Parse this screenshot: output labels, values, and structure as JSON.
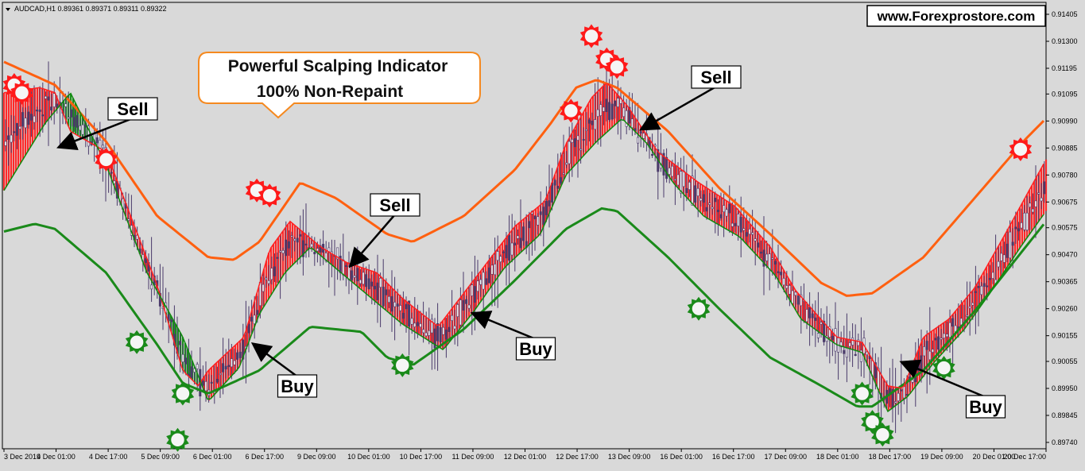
{
  "chart_data": {
    "type": "line",
    "header": "AUDCAD,H1  0.89361 0.89371 0.89311 0.89322",
    "watermark": "www.Forexprostore.com",
    "headline_line1": "Powerful Scalping Indicator",
    "headline_line2": "100% Non-Repaint",
    "y_ticks": [
      "0.91405",
      "0.91300",
      "0.91195",
      "0.91095",
      "0.90990",
      "0.90885",
      "0.90780",
      "0.90675",
      "0.90575",
      "0.90470",
      "0.90365",
      "0.90260",
      "0.90155",
      "0.90055",
      "0.89950",
      "0.89845",
      "0.89740"
    ],
    "ylim": [
      0.8974,
      0.91405
    ],
    "x_ticks": [
      "3 Dec 2019",
      "4 Dec 01:00",
      "4 Dec 17:00",
      "5 Dec 09:00",
      "6 Dec 01:00",
      "6 Dec 17:00",
      "9 Dec 09:00",
      "10 Dec 01:00",
      "10 Dec 17:00",
      "11 Dec 09:00",
      "12 Dec 01:00",
      "12 Dec 17:00",
      "13 Dec 09:00",
      "16 Dec 01:00",
      "16 Dec 17:00",
      "17 Dec 09:00",
      "18 Dec 01:00",
      "18 Dec 17:00",
      "19 Dec 09:00",
      "20 Dec 01:00",
      "20 Dec 17:00"
    ],
    "x_range": [
      0,
      20.4
    ],
    "series": [
      {
        "values": [
          [
            0,
            0.9122
          ],
          [
            1,
            0.9113
          ],
          [
            2,
            0.9091
          ],
          [
            3,
            0.9062
          ],
          [
            4,
            0.9046
          ],
          [
            4.5,
            0.9045
          ],
          [
            5,
            0.9052
          ],
          [
            5.8,
            0.9075
          ],
          [
            6.5,
            0.9069
          ],
          [
            7.5,
            0.9055
          ],
          [
            8,
            0.9052
          ],
          [
            9,
            0.9062
          ],
          [
            10,
            0.908
          ],
          [
            10.7,
            0.9098
          ],
          [
            11.2,
            0.9112
          ],
          [
            11.6,
            0.9115
          ],
          [
            12,
            0.9112
          ],
          [
            13,
            0.9095
          ],
          [
            14,
            0.9073
          ],
          [
            15,
            0.9055
          ],
          [
            16,
            0.9036
          ],
          [
            16.5,
            0.9031
          ],
          [
            17,
            0.9032
          ],
          [
            18,
            0.9046
          ],
          [
            19,
            0.9069
          ],
          [
            20,
            0.9092
          ],
          [
            20.4,
            0.91
          ]
        ],
        "color": "#ff6010"
      },
      {
        "values": [
          [
            0,
            0.9056
          ],
          [
            0.6,
            0.9059
          ],
          [
            1,
            0.9057
          ],
          [
            2,
            0.904
          ],
          [
            3,
            0.9012
          ],
          [
            3.5,
            0.8997
          ],
          [
            4,
            0.8993
          ],
          [
            5,
            0.9002
          ],
          [
            6,
            0.9019
          ],
          [
            7,
            0.9017
          ],
          [
            7.5,
            0.9007
          ],
          [
            8,
            0.9004
          ],
          [
            9,
            0.9018
          ],
          [
            10,
            0.9037
          ],
          [
            11,
            0.9057
          ],
          [
            11.7,
            0.9065
          ],
          [
            12,
            0.9064
          ],
          [
            13,
            0.9046
          ],
          [
            14,
            0.9026
          ],
          [
            15,
            0.9007
          ],
          [
            16,
            0.8996
          ],
          [
            16.7,
            0.8988
          ],
          [
            17,
            0.8988
          ],
          [
            18,
            0.9002
          ],
          [
            19,
            0.9025
          ],
          [
            20,
            0.905
          ],
          [
            20.4,
            0.906
          ]
        ],
        "color": "#1a8a1a"
      },
      {
        "values": [
          [
            0,
            0.911
          ],
          [
            0.7,
            0.9112
          ],
          [
            1,
            0.911
          ],
          [
            1.3,
            0.9095
          ],
          [
            2,
            0.9087
          ],
          [
            3,
            0.9035
          ],
          [
            3.5,
            0.9002
          ],
          [
            3.8,
            0.8996
          ],
          [
            4,
            0.9002
          ],
          [
            4.7,
            0.9015
          ],
          [
            5.2,
            0.9049
          ],
          [
            5.6,
            0.906
          ],
          [
            6.2,
            0.905
          ],
          [
            6.7,
            0.9044
          ],
          [
            7.3,
            0.904
          ],
          [
            7.8,
            0.903
          ],
          [
            8.5,
            0.9019
          ],
          [
            9.5,
            0.9045
          ],
          [
            10,
            0.9058
          ],
          [
            10.6,
            0.9068
          ],
          [
            11.0,
            0.909
          ],
          [
            11.5,
            0.9108
          ],
          [
            11.8,
            0.9114
          ],
          [
            12.2,
            0.9105
          ],
          [
            12.8,
            0.9087
          ],
          [
            13.6,
            0.9075
          ],
          [
            14.3,
            0.9066
          ],
          [
            15,
            0.905
          ],
          [
            15.5,
            0.9033
          ],
          [
            16.3,
            0.9015
          ],
          [
            16.8,
            0.9013
          ],
          [
            17.3,
            0.8996
          ],
          [
            17.6,
            0.8995
          ],
          [
            18,
            0.9015
          ],
          [
            18.5,
            0.9022
          ],
          [
            19,
            0.9034
          ],
          [
            19.6,
            0.9055
          ],
          [
            20.4,
            0.9084
          ]
        ],
        "color": "#ff2020"
      },
      {
        "values": [
          [
            0,
            0.9072
          ],
          [
            0.8,
            0.9098
          ],
          [
            1.3,
            0.911
          ],
          [
            2,
            0.9082
          ],
          [
            2.8,
            0.904
          ],
          [
            3.5,
            0.9015
          ],
          [
            4,
            0.899
          ],
          [
            4.6,
            0.9003
          ],
          [
            5.0,
            0.9024
          ],
          [
            5.5,
            0.904
          ],
          [
            6.0,
            0.905
          ],
          [
            6.6,
            0.904
          ],
          [
            7.2,
            0.903
          ],
          [
            7.8,
            0.902
          ],
          [
            8.6,
            0.901
          ],
          [
            9.2,
            0.9025
          ],
          [
            9.8,
            0.9042
          ],
          [
            10.5,
            0.9055
          ],
          [
            11.0,
            0.9078
          ],
          [
            11.6,
            0.9091
          ],
          [
            12.1,
            0.91
          ],
          [
            12.6,
            0.909
          ],
          [
            13.1,
            0.9075
          ],
          [
            13.7,
            0.9062
          ],
          [
            14.4,
            0.9054
          ],
          [
            15.1,
            0.9039
          ],
          [
            15.6,
            0.9022
          ],
          [
            16.3,
            0.9012
          ],
          [
            16.8,
            0.9009
          ],
          [
            17.3,
            0.8986
          ],
          [
            17.7,
            0.8992
          ],
          [
            18.2,
            0.9005
          ],
          [
            18.8,
            0.9018
          ],
          [
            19.3,
            0.9032
          ],
          [
            19.9,
            0.905
          ],
          [
            20.4,
            0.9064
          ]
        ],
        "color": "#0f8a0f"
      }
    ],
    "annotations": [
      {
        "label": "Sell",
        "x": 1.1,
        "y": 0.9089
      },
      {
        "label": "Buy",
        "x": 4.9,
        "y": 0.9012
      },
      {
        "label": "Sell",
        "x": 6.8,
        "y": 0.9043
      },
      {
        "label": "Buy",
        "x": 9.2,
        "y": 0.9024
      },
      {
        "label": "Sell",
        "x": 12.5,
        "y": 0.9096
      },
      {
        "label": "Buy",
        "x": 17.6,
        "y": 0.9005
      }
    ]
  },
  "signals": {
    "sell": [
      [
        0.2,
        0.9113
      ],
      [
        0.35,
        0.911
      ],
      [
        2.0,
        0.9084
      ],
      [
        4.95,
        0.9072
      ],
      [
        5.2,
        0.907
      ],
      [
        11.1,
        0.9103
      ],
      [
        11.5,
        0.9132
      ],
      [
        11.8,
        0.9123
      ],
      [
        12.0,
        0.912
      ],
      [
        19.9,
        0.9088
      ]
    ],
    "buy": [
      [
        2.6,
        0.9013
      ],
      [
        3.5,
        0.8993
      ],
      [
        3.4,
        0.8975
      ],
      [
        7.8,
        0.9004
      ],
      [
        13.6,
        0.9026
      ],
      [
        16.8,
        0.8993
      ],
      [
        17.0,
        0.8982
      ],
      [
        17.2,
        0.8977
      ],
      [
        18.4,
        0.9003
      ]
    ]
  }
}
